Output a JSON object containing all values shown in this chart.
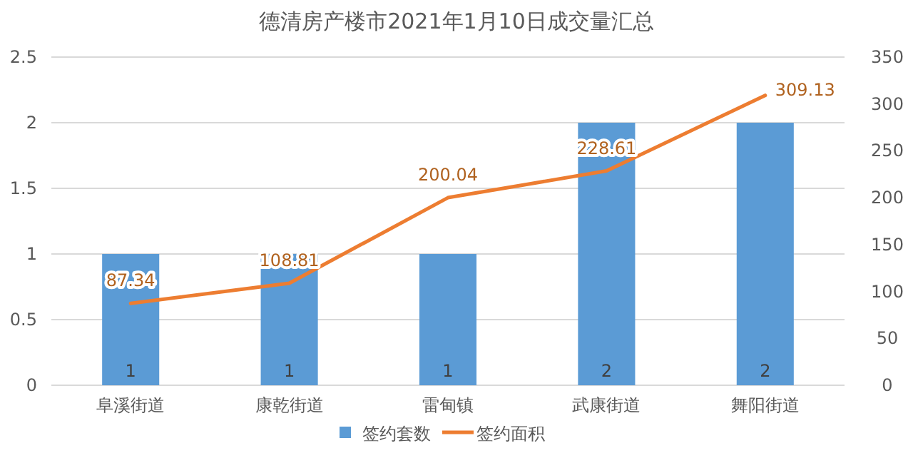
{
  "chart_data": {
    "type": "bar",
    "title": "德清房产楼市2021年1月10日成交量汇总",
    "categories": [
      "阜溪街道",
      "康乾街道",
      "雷甸镇",
      "武康街道",
      "舞阳街道"
    ],
    "series": [
      {
        "name": "签约套数",
        "color": "#5b9bd5",
        "values": [
          1,
          1,
          1,
          2,
          2
        ]
      },
      {
        "name": "签约面积",
        "type": "line",
        "axis": "y2",
        "color": "#ed7d31",
        "values": [
          87.34,
          108.81,
          200.04,
          228.61,
          309.13
        ]
      }
    ],
    "ylim": [
      0,
      2.5
    ],
    "yticks": [
      0,
      0.5,
      1,
      1.5,
      2,
      2.5
    ],
    "y2lim": [
      0,
      350
    ],
    "y2ticks": [
      0,
      50,
      100,
      150,
      200,
      250,
      300,
      350
    ],
    "grid": "y",
    "legend": "bottom",
    "data_labels": true
  }
}
